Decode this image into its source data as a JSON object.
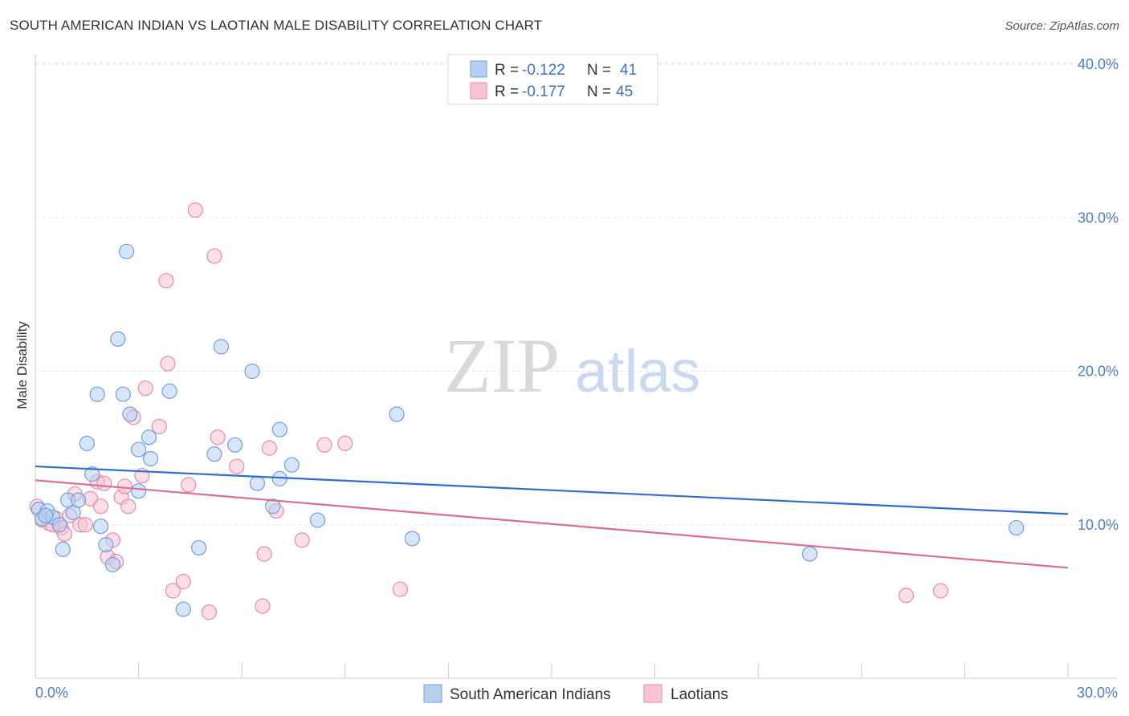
{
  "header": {
    "title": "SOUTH AMERICAN INDIAN VS LAOTIAN MALE DISABILITY CORRELATION CHART",
    "source": "Source: ZipAtlas.com"
  },
  "watermark": {
    "zip": "ZIP",
    "atlas": "atlas"
  },
  "legend": {
    "r_label": "R =",
    "n_label": "N =",
    "series": [
      {
        "r": "-0.122",
        "n": "41"
      },
      {
        "r": "-0.177",
        "n": "45"
      }
    ]
  },
  "colors": {
    "blue_fill": "#b7d0f2",
    "blue_stroke": "#6f9fdc",
    "blue_line": "#2f6fcc",
    "pink_fill": "#f8c3d3",
    "pink_stroke": "#e98aa8",
    "pink_line": "#e06a93",
    "accent_text": "#3a72c4"
  },
  "chart_data": {
    "type": "scatter",
    "title": "SOUTH AMERICAN INDIAN VS LAOTIAN MALE DISABILITY CORRELATION CHART",
    "xlabel": "",
    "ylabel": "Male Disability",
    "xlim": [
      0,
      30
    ],
    "ylim": [
      0,
      40
    ],
    "x_tick_labels": {
      "left": "0.0%",
      "right": "30.0%"
    },
    "y_ticks": [
      {
        "value": 10,
        "label": "10.0%"
      },
      {
        "value": 20,
        "label": "20.0%"
      },
      {
        "value": 30,
        "label": "30.0%"
      },
      {
        "value": 40,
        "label": "40.0%"
      }
    ],
    "series": [
      {
        "name": "South American Indians",
        "color": "#6f9fdc",
        "points": [
          [
            0.1,
            11.0
          ],
          [
            0.2,
            10.4
          ],
          [
            0.35,
            10.9
          ],
          [
            0.5,
            10.5
          ],
          [
            0.7,
            10.0
          ],
          [
            0.8,
            8.4
          ],
          [
            0.95,
            11.6
          ],
          [
            1.1,
            10.8
          ],
          [
            1.25,
            11.6
          ],
          [
            1.5,
            15.3
          ],
          [
            1.65,
            13.3
          ],
          [
            1.8,
            18.5
          ],
          [
            1.9,
            9.9
          ],
          [
            2.05,
            8.7
          ],
          [
            2.25,
            7.4
          ],
          [
            2.4,
            22.1
          ],
          [
            2.55,
            18.5
          ],
          [
            2.65,
            27.8
          ],
          [
            2.75,
            17.2
          ],
          [
            3.0,
            14.9
          ],
          [
            3.0,
            12.2
          ],
          [
            3.3,
            15.7
          ],
          [
            3.35,
            14.3
          ],
          [
            3.9,
            18.7
          ],
          [
            4.3,
            4.5
          ],
          [
            4.75,
            8.5
          ],
          [
            5.2,
            14.6
          ],
          [
            5.4,
            21.6
          ],
          [
            5.8,
            15.2
          ],
          [
            6.3,
            20.0
          ],
          [
            6.45,
            12.7
          ],
          [
            6.9,
            11.2
          ],
          [
            7.1,
            16.2
          ],
          [
            7.1,
            13.0
          ],
          [
            7.45,
            13.9
          ],
          [
            8.2,
            10.3
          ],
          [
            10.5,
            17.2
          ],
          [
            10.95,
            9.1
          ],
          [
            22.5,
            8.1
          ],
          [
            28.5,
            9.8
          ],
          [
            0.3,
            10.6
          ]
        ],
        "trend": {
          "x": [
            0,
            30
          ],
          "y": [
            13.8,
            10.7
          ]
        }
      },
      {
        "name": "Laotians",
        "color": "#e98aa8",
        "points": [
          [
            0.05,
            11.2
          ],
          [
            0.2,
            10.3
          ],
          [
            0.4,
            10.1
          ],
          [
            0.5,
            10.0
          ],
          [
            0.6,
            10.4
          ],
          [
            0.75,
            9.8
          ],
          [
            0.85,
            9.4
          ],
          [
            1.0,
            10.6
          ],
          [
            1.15,
            12.0
          ],
          [
            1.3,
            10.0
          ],
          [
            1.45,
            10.0
          ],
          [
            1.6,
            11.7
          ],
          [
            1.8,
            12.8
          ],
          [
            1.9,
            11.2
          ],
          [
            2.1,
            7.9
          ],
          [
            2.25,
            9.0
          ],
          [
            2.35,
            7.6
          ],
          [
            2.5,
            11.8
          ],
          [
            2.6,
            12.5
          ],
          [
            2.7,
            11.2
          ],
          [
            2.85,
            17.0
          ],
          [
            3.1,
            13.2
          ],
          [
            3.2,
            18.9
          ],
          [
            3.6,
            16.4
          ],
          [
            3.8,
            25.9
          ],
          [
            3.85,
            20.5
          ],
          [
            4.0,
            5.7
          ],
          [
            4.3,
            6.3
          ],
          [
            4.45,
            12.6
          ],
          [
            4.65,
            30.5
          ],
          [
            5.05,
            4.3
          ],
          [
            5.2,
            27.5
          ],
          [
            5.3,
            15.7
          ],
          [
            5.85,
            13.8
          ],
          [
            6.6,
            4.7
          ],
          [
            6.65,
            8.1
          ],
          [
            6.8,
            15.0
          ],
          [
            7.0,
            10.9
          ],
          [
            7.75,
            9.0
          ],
          [
            8.4,
            15.2
          ],
          [
            9.0,
            15.3
          ],
          [
            10.6,
            5.8
          ],
          [
            25.3,
            5.4
          ],
          [
            26.3,
            5.7
          ],
          [
            2.0,
            12.7
          ]
        ],
        "trend": {
          "x": [
            0,
            30
          ],
          "y": [
            12.9,
            7.2
          ]
        }
      }
    ]
  }
}
